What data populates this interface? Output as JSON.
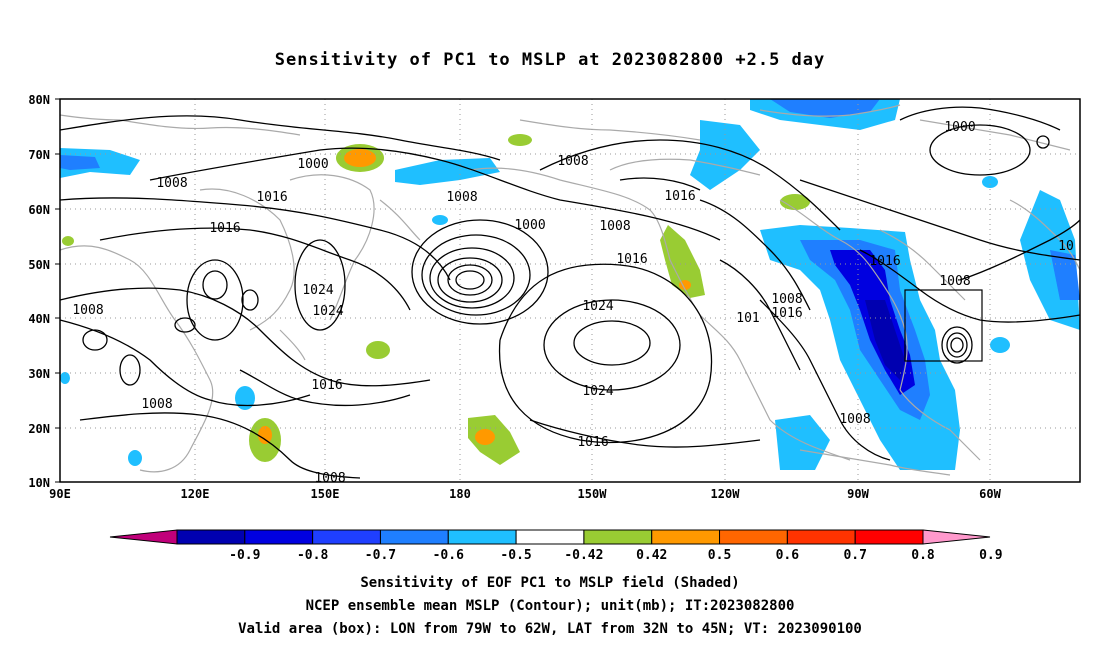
{
  "title": "Sensitivity of PC1 to MSLP at 2023082800 +2.5 day",
  "lat_labels": [
    "80N",
    "70N",
    "60N",
    "50N",
    "40N",
    "30N",
    "20N",
    "10N"
  ],
  "lon_labels": [
    "90E",
    "120E",
    "150E",
    "180",
    "150W",
    "120W",
    "90W",
    "60W"
  ],
  "contour_labels": [
    "1000",
    "1008",
    "1016",
    "1024",
    "1008",
    "1016",
    "1024",
    "1008",
    "1000",
    "1008",
    "1016",
    "1008",
    "1016",
    "1024",
    "1024",
    "1016",
    "1016",
    "1008",
    "1016",
    "101",
    "1008",
    "1008",
    "1000",
    "1008",
    "10",
    "1016",
    "1008"
  ],
  "colorbar": {
    "ticks": [
      "-0.9",
      "-0.8",
      "-0.7",
      "-0.6",
      "-0.5",
      "-0.42",
      "0.42",
      "0.5",
      "0.6",
      "0.7",
      "0.8",
      "0.9"
    ],
    "colors": [
      "#c0007a",
      "#0000b0",
      "#0000e0",
      "#1f3fff",
      "#1f7fff",
      "#1fbfff",
      "#ffffff",
      "#99cc33",
      "#ff9900",
      "#ff6600",
      "#ff3300",
      "#ff0000",
      "#ff99cc"
    ]
  },
  "captions": {
    "line1": "Sensitivity of EOF PC1 to MSLP field (Shaded)",
    "line2": "NCEP ensemble mean MSLP (Contour); unit(mb); IT:2023082800",
    "line3": "Valid area (box): LON from 79W to 62W, LAT from 32N to 45N; VT: 2023090100"
  }
}
